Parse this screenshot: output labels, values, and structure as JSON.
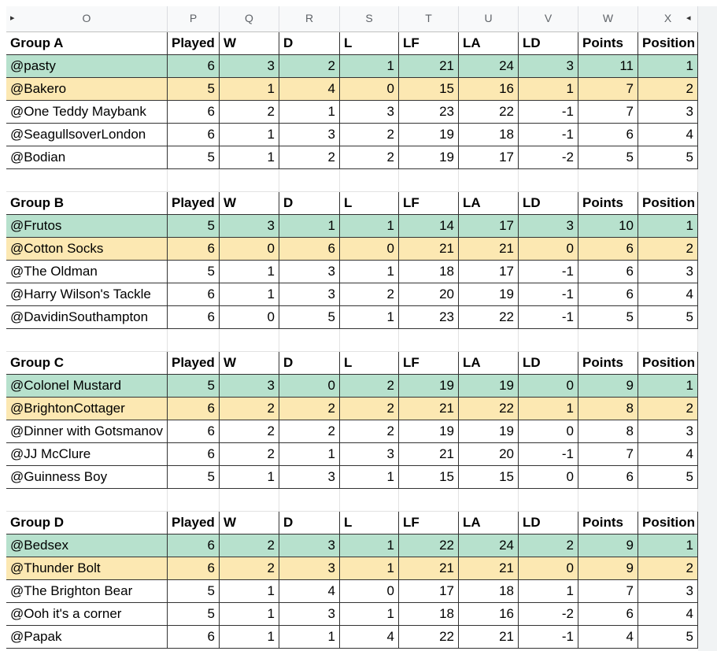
{
  "columns": [
    "O",
    "P",
    "Q",
    "R",
    "S",
    "T",
    "U",
    "V",
    "W",
    "X"
  ],
  "groups": [
    {
      "header": [
        "Group A",
        "Played",
        "W",
        "D",
        "L",
        "LF",
        "LA",
        "LD",
        "Points",
        "Position"
      ],
      "rows": [
        [
          "@pasty",
          6,
          3,
          2,
          1,
          21,
          24,
          3,
          11,
          1
        ],
        [
          "@Bakero",
          5,
          1,
          4,
          0,
          15,
          16,
          1,
          7,
          2
        ],
        [
          "@One Teddy Maybank",
          6,
          2,
          1,
          3,
          23,
          22,
          -1,
          7,
          3
        ],
        [
          "@SeagullsoverLondon",
          6,
          1,
          3,
          2,
          19,
          18,
          -1,
          6,
          4
        ],
        [
          "@Bodian",
          5,
          1,
          2,
          2,
          19,
          17,
          -2,
          5,
          5
        ]
      ]
    },
    {
      "header": [
        "Group B",
        "Played",
        "W",
        "D",
        "L",
        "LF",
        "LA",
        "LD",
        "Points",
        "Position"
      ],
      "rows": [
        [
          "@Frutos",
          5,
          3,
          1,
          1,
          14,
          17,
          3,
          10,
          1
        ],
        [
          "@Cotton Socks",
          6,
          0,
          6,
          0,
          21,
          21,
          0,
          6,
          2
        ],
        [
          "@The Oldman",
          5,
          1,
          3,
          1,
          18,
          17,
          -1,
          6,
          3
        ],
        [
          "@Harry Wilson's Tackle",
          6,
          1,
          3,
          2,
          20,
          19,
          -1,
          6,
          4
        ],
        [
          "@DavidinSouthampton",
          6,
          0,
          5,
          1,
          23,
          22,
          -1,
          5,
          5
        ]
      ]
    },
    {
      "header": [
        "Group C",
        "Played",
        "W",
        "D",
        "L",
        "LF",
        "LA",
        "LD",
        "Points",
        "Position"
      ],
      "rows": [
        [
          "@Colonel Mustard",
          5,
          3,
          0,
          2,
          19,
          19,
          0,
          9,
          1
        ],
        [
          "@BrightonCottager",
          6,
          2,
          2,
          2,
          21,
          22,
          1,
          8,
          2
        ],
        [
          "@Dinner with Gotsmanov",
          6,
          2,
          2,
          2,
          19,
          19,
          0,
          8,
          3
        ],
        [
          "@JJ McClure",
          6,
          2,
          1,
          3,
          21,
          20,
          -1,
          7,
          4
        ],
        [
          "@Guinness Boy",
          5,
          1,
          3,
          1,
          15,
          15,
          0,
          6,
          5
        ]
      ]
    },
    {
      "header": [
        "Group D",
        "Played",
        "W",
        "D",
        "L",
        "LF",
        "LA",
        "LD",
        "Points",
        "Position"
      ],
      "rows": [
        [
          "@Bedsex",
          6,
          2,
          3,
          1,
          22,
          24,
          2,
          9,
          1
        ],
        [
          "@Thunder Bolt",
          6,
          2,
          3,
          1,
          21,
          21,
          0,
          9,
          2
        ],
        [
          "@The Brighton Bear",
          5,
          1,
          4,
          0,
          17,
          18,
          1,
          7,
          3
        ],
        [
          "@Ooh it's a corner",
          5,
          1,
          3,
          1,
          18,
          16,
          -2,
          6,
          4
        ],
        [
          "@Papak",
          6,
          1,
          1,
          4,
          22,
          21,
          -1,
          4,
          5
        ]
      ]
    }
  ]
}
